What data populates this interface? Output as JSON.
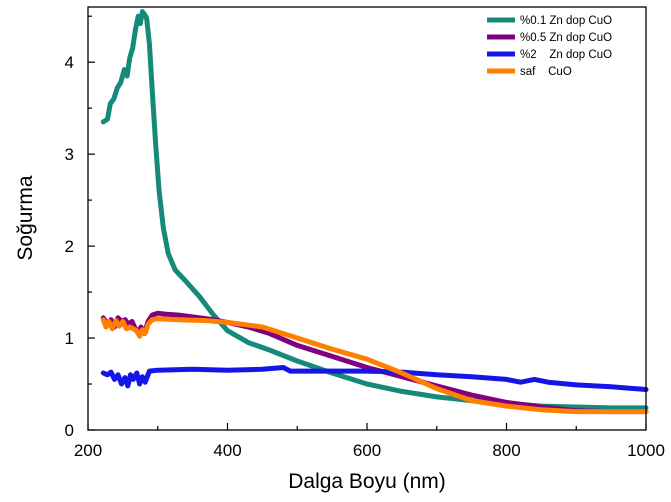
{
  "chart_data": {
    "type": "line",
    "title": "",
    "xlabel": "Dalga Boyu (nm)",
    "ylabel": "Soğurma",
    "xlim": [
      200,
      1000
    ],
    "ylim": [
      0,
      4.6
    ],
    "x_ticks": [
      "200",
      "400",
      "600",
      "800",
      "1000"
    ],
    "y_ticks": [
      "0",
      "1",
      "2",
      "3",
      "4"
    ],
    "x_tick_values": [
      200,
      400,
      600,
      800,
      1000
    ],
    "y_tick_values": [
      0,
      1,
      2,
      3,
      4
    ],
    "grid": false,
    "legend_position": "top-right",
    "series": [
      {
        "name": "%0.1 Zn dop CuO",
        "color": "#168a7a",
        "points": [
          [
            222,
            3.35
          ],
          [
            228,
            3.38
          ],
          [
            232,
            3.55
          ],
          [
            237,
            3.6
          ],
          [
            242,
            3.72
          ],
          [
            247,
            3.78
          ],
          [
            252,
            3.92
          ],
          [
            256,
            3.85
          ],
          [
            260,
            4.05
          ],
          [
            264,
            4.15
          ],
          [
            268,
            4.35
          ],
          [
            272,
            4.5
          ],
          [
            275,
            4.42
          ],
          [
            278,
            4.55
          ],
          [
            281,
            4.52
          ],
          [
            284,
            4.48
          ],
          [
            288,
            4.2
          ],
          [
            292,
            3.7
          ],
          [
            297,
            3.1
          ],
          [
            302,
            2.6
          ],
          [
            308,
            2.2
          ],
          [
            315,
            1.92
          ],
          [
            325,
            1.74
          ],
          [
            340,
            1.62
          ],
          [
            360,
            1.45
          ],
          [
            380,
            1.25
          ],
          [
            400,
            1.08
          ],
          [
            430,
            0.95
          ],
          [
            460,
            0.87
          ],
          [
            500,
            0.75
          ],
          [
            550,
            0.62
          ],
          [
            600,
            0.5
          ],
          [
            650,
            0.42
          ],
          [
            700,
            0.36
          ],
          [
            750,
            0.32
          ],
          [
            800,
            0.29
          ],
          [
            850,
            0.26
          ],
          [
            900,
            0.25
          ],
          [
            950,
            0.24
          ],
          [
            1000,
            0.24
          ]
        ]
      },
      {
        "name": "%0.5 Zn dop CuO",
        "color": "#800080",
        "points": [
          [
            222,
            1.22
          ],
          [
            228,
            1.15
          ],
          [
            233,
            1.2
          ],
          [
            238,
            1.12
          ],
          [
            243,
            1.22
          ],
          [
            248,
            1.18
          ],
          [
            253,
            1.2
          ],
          [
            258,
            1.15
          ],
          [
            263,
            1.18
          ],
          [
            268,
            1.1
          ],
          [
            272,
            1.05
          ],
          [
            276,
            1.12
          ],
          [
            281,
            1.05
          ],
          [
            286,
            1.18
          ],
          [
            292,
            1.25
          ],
          [
            300,
            1.27
          ],
          [
            310,
            1.26
          ],
          [
            330,
            1.25
          ],
          [
            360,
            1.22
          ],
          [
            380,
            1.2
          ],
          [
            400,
            1.17
          ],
          [
            430,
            1.12
          ],
          [
            460,
            1.05
          ],
          [
            500,
            0.92
          ],
          [
            550,
            0.8
          ],
          [
            600,
            0.68
          ],
          [
            650,
            0.58
          ],
          [
            700,
            0.48
          ],
          [
            750,
            0.38
          ],
          [
            800,
            0.3
          ],
          [
            850,
            0.25
          ],
          [
            900,
            0.21
          ],
          [
            950,
            0.2
          ],
          [
            1000,
            0.2
          ]
        ]
      },
      {
        "name": "%2    Zn dop CuO",
        "color": "#1515e8",
        "points": [
          [
            222,
            0.62
          ],
          [
            228,
            0.6
          ],
          [
            233,
            0.63
          ],
          [
            238,
            0.55
          ],
          [
            243,
            0.6
          ],
          [
            248,
            0.5
          ],
          [
            253,
            0.57
          ],
          [
            257,
            0.48
          ],
          [
            261,
            0.6
          ],
          [
            265,
            0.55
          ],
          [
            270,
            0.62
          ],
          [
            274,
            0.5
          ],
          [
            278,
            0.58
          ],
          [
            282,
            0.52
          ],
          [
            288,
            0.64
          ],
          [
            300,
            0.65
          ],
          [
            350,
            0.66
          ],
          [
            400,
            0.65
          ],
          [
            450,
            0.66
          ],
          [
            480,
            0.68
          ],
          [
            490,
            0.64
          ],
          [
            550,
            0.64
          ],
          [
            600,
            0.64
          ],
          [
            650,
            0.63
          ],
          [
            700,
            0.6
          ],
          [
            750,
            0.58
          ],
          [
            800,
            0.55
          ],
          [
            820,
            0.52
          ],
          [
            840,
            0.55
          ],
          [
            860,
            0.52
          ],
          [
            900,
            0.49
          ],
          [
            950,
            0.47
          ],
          [
            1000,
            0.44
          ]
        ]
      },
      {
        "name": "saf    CuO",
        "color": "#ff8000",
        "points": [
          [
            222,
            1.2
          ],
          [
            226,
            1.12
          ],
          [
            230,
            1.18
          ],
          [
            235,
            1.1
          ],
          [
            240,
            1.19
          ],
          [
            245,
            1.13
          ],
          [
            250,
            1.18
          ],
          [
            255,
            1.1
          ],
          [
            260,
            1.12
          ],
          [
            265,
            1.1
          ],
          [
            270,
            1.08
          ],
          [
            274,
            1.02
          ],
          [
            278,
            1.09
          ],
          [
            282,
            1.05
          ],
          [
            286,
            1.15
          ],
          [
            292,
            1.2
          ],
          [
            300,
            1.21
          ],
          [
            330,
            1.2
          ],
          [
            370,
            1.19
          ],
          [
            400,
            1.17
          ],
          [
            450,
            1.12
          ],
          [
            500,
            1.0
          ],
          [
            550,
            0.88
          ],
          [
            600,
            0.77
          ],
          [
            650,
            0.62
          ],
          [
            700,
            0.45
          ],
          [
            750,
            0.32
          ],
          [
            800,
            0.26
          ],
          [
            850,
            0.22
          ],
          [
            900,
            0.2
          ],
          [
            950,
            0.2
          ],
          [
            1000,
            0.2
          ]
        ]
      }
    ]
  }
}
